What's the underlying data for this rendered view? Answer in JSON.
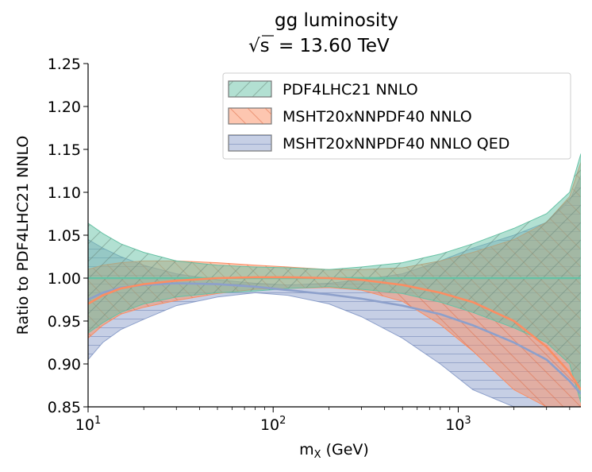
{
  "chart_data": {
    "type": "area",
    "title": "gg luminosity",
    "subtitle_symbol": "√s",
    "subtitle_value": "= 13.60 TeV",
    "xlabel_main": "m",
    "xlabel_sub": "X",
    "xlabel_unit": " (GeV)",
    "ylabel": "Ratio to PDF4LHC21 NNLO",
    "xscale": "log",
    "xlim": [
      10,
      4600
    ],
    "ylim": [
      0.85,
      1.25
    ],
    "x_ticks": [
      {
        "value": 10,
        "base": "10",
        "exp": "1"
      },
      {
        "value": 100,
        "base": "10",
        "exp": "2"
      },
      {
        "value": 1000,
        "base": "10",
        "exp": "3"
      }
    ],
    "y_ticks": [
      "0.85",
      "0.90",
      "0.95",
      "1.00",
      "1.05",
      "1.10",
      "1.15",
      "1.20",
      "1.25"
    ],
    "legend_position": "top-right",
    "x": [
      10,
      12,
      15,
      20,
      30,
      50,
      80,
      120,
      200,
      300,
      500,
      800,
      1200,
      2000,
      3000,
      4000,
      4600
    ],
    "series": [
      {
        "name": "PDF4LHC21 NNLO",
        "color": "#66c2a5",
        "hatch": "diagonal-single",
        "central": [
          1.0,
          1.0,
          1.0,
          1.0,
          1.0,
          1.0,
          1.0,
          1.0,
          1.0,
          1.0,
          1.0,
          1.0,
          1.0,
          1.0,
          1.0,
          1.0,
          1.0
        ],
        "upper": [
          1.064,
          1.052,
          1.04,
          1.03,
          1.02,
          1.015,
          1.013,
          1.012,
          1.01,
          1.013,
          1.018,
          1.028,
          1.04,
          1.058,
          1.075,
          1.1,
          1.145
        ],
        "lower": [
          0.936,
          0.948,
          0.96,
          0.97,
          0.978,
          0.983,
          0.985,
          0.988,
          0.99,
          0.987,
          0.982,
          0.972,
          0.96,
          0.942,
          0.925,
          0.9,
          0.855
        ]
      },
      {
        "name": "MSHT20xNNPDF40 NNLO",
        "color": "#fc8d62",
        "hatch": "diagonal-cross",
        "central": [
          0.97,
          0.98,
          0.988,
          0.993,
          0.997,
          1.0,
          1.001,
          1.001,
          1.0,
          0.998,
          0.992,
          0.983,
          0.972,
          0.95,
          0.92,
          0.89,
          0.87
        ],
        "upper": [
          1.01,
          1.015,
          1.018,
          1.02,
          1.02,
          1.018,
          1.015,
          1.013,
          1.01,
          1.01,
          1.012,
          1.02,
          1.03,
          1.045,
          1.065,
          1.095,
          1.135
        ],
        "lower": [
          0.93,
          0.945,
          0.958,
          0.966,
          0.974,
          0.982,
          0.987,
          0.988,
          0.989,
          0.986,
          0.973,
          0.946,
          0.915,
          0.87,
          0.85,
          0.85,
          0.85
        ]
      },
      {
        "name": "MSHT20xNNPDF40 NNLO QED",
        "color": "#8da0cb",
        "hatch": "horizontal",
        "central": [
          0.975,
          0.983,
          0.989,
          0.992,
          0.994,
          0.993,
          0.99,
          0.986,
          0.981,
          0.976,
          0.968,
          0.958,
          0.945,
          0.925,
          0.905,
          0.88,
          0.865
        ],
        "upper": [
          1.045,
          1.035,
          1.025,
          1.015,
          1.005,
          0.998,
          0.994,
          0.992,
          0.994,
          0.998,
          1.005,
          1.02,
          1.035,
          1.05,
          1.065,
          1.09,
          1.12
        ],
        "lower": [
          0.905,
          0.925,
          0.94,
          0.952,
          0.968,
          0.978,
          0.983,
          0.98,
          0.97,
          0.955,
          0.93,
          0.9,
          0.87,
          0.85,
          0.85,
          0.85,
          0.85
        ]
      }
    ]
  }
}
